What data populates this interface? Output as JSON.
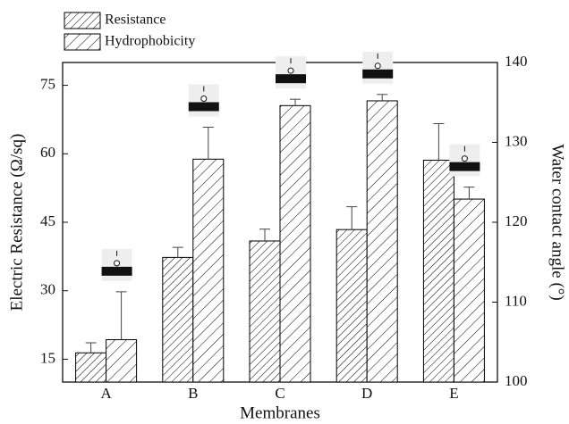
{
  "chart_data": {
    "type": "bar",
    "xlabel": "Membranes",
    "ylabel": "Electric Resistance (Ω/sq)",
    "y2label": "Water contact angle (°)",
    "categories": [
      "A",
      "B",
      "C",
      "D",
      "E"
    ],
    "series": [
      {
        "name": "Resistance",
        "color": "#000000",
        "values": [
          16.4,
          37.3,
          40.9,
          43.4,
          58.6
        ],
        "errors": [
          2.2,
          2.2,
          2.6,
          5.0,
          8.0
        ]
      },
      {
        "name": "Hydrophobicity",
        "color": "#000000",
        "axis": "y2",
        "values": [
          105.3,
          127.9,
          134.6,
          135.2,
          122.9
        ],
        "errors": [
          6.0,
          4.0,
          0.8,
          0.8,
          1.5
        ]
      }
    ],
    "ylim": [
      10,
      80
    ],
    "yticks": [
      15,
      30,
      45,
      60,
      75
    ],
    "y2lim": [
      100,
      140
    ],
    "y2ticks": [
      100,
      110,
      120,
      130,
      140
    ],
    "legend": "top-left"
  }
}
